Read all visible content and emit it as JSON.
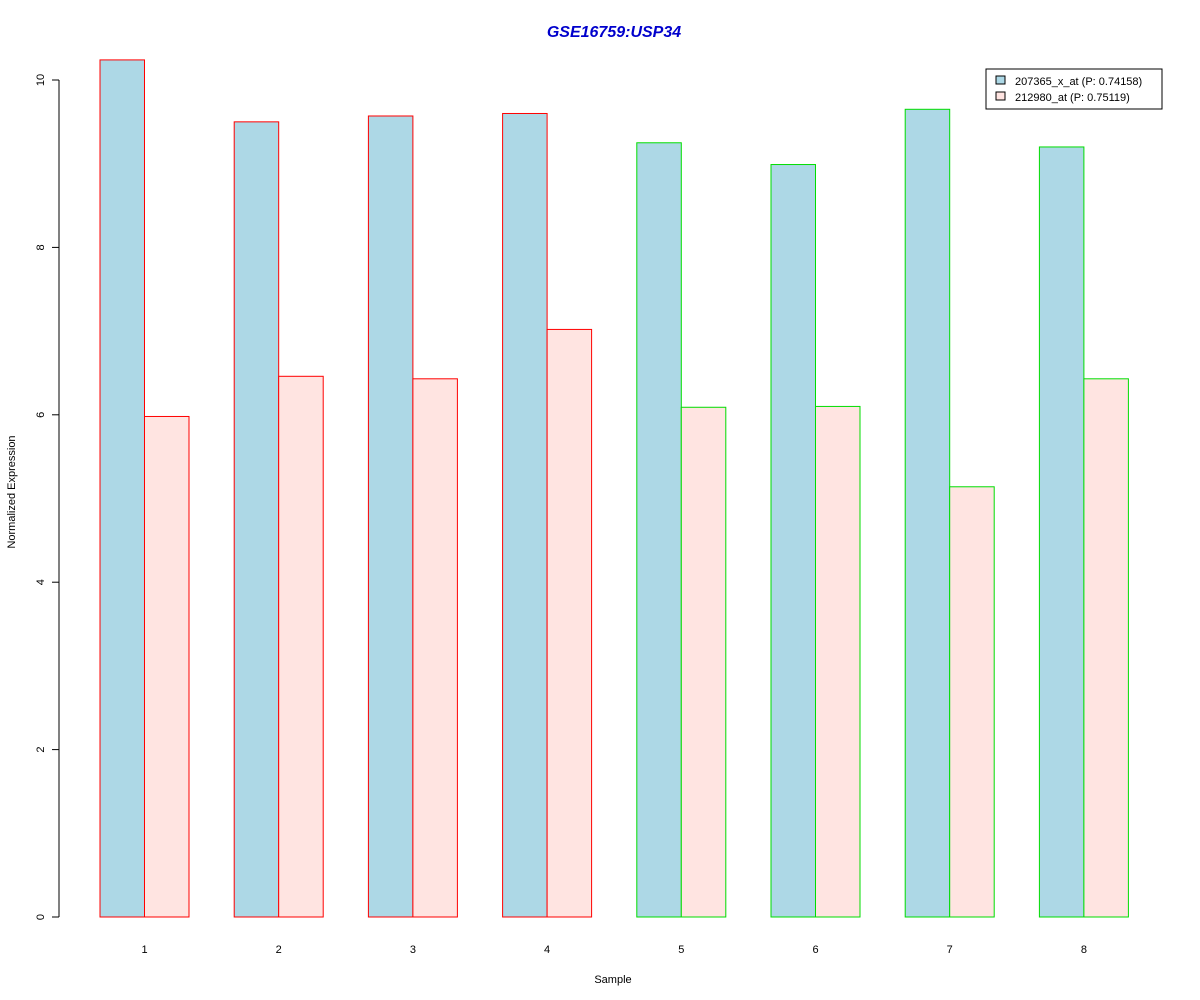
{
  "chart_data": {
    "type": "bar",
    "title": "GSE16759:USP34",
    "xlabel": "Sample",
    "ylabel": "Normalized Expression",
    "categories": [
      "1",
      "2",
      "3",
      "4",
      "5",
      "6",
      "7",
      "8"
    ],
    "group_border_colors": [
      "#ff0000",
      "#ff0000",
      "#ff0000",
      "#ff0000",
      "#00dd00",
      "#00dd00",
      "#00dd00",
      "#00dd00"
    ],
    "series": [
      {
        "name": "207365_x_at (P: 0.74158)",
        "fill": "#add8e6",
        "values": [
          10.24,
          9.5,
          9.57,
          9.6,
          9.25,
          8.99,
          9.65,
          9.2
        ]
      },
      {
        "name": "212980_at (P: 0.75119)",
        "fill": "#ffe4e1",
        "values": [
          5.98,
          6.46,
          6.43,
          7.02,
          6.09,
          6.1,
          5.14,
          6.43
        ]
      }
    ],
    "yticks": [
      0,
      2,
      4,
      6,
      8,
      10
    ],
    "ylim": [
      0,
      10.24
    ],
    "legend_position": "top-right",
    "grid": false,
    "title_color": "#0000cc"
  }
}
